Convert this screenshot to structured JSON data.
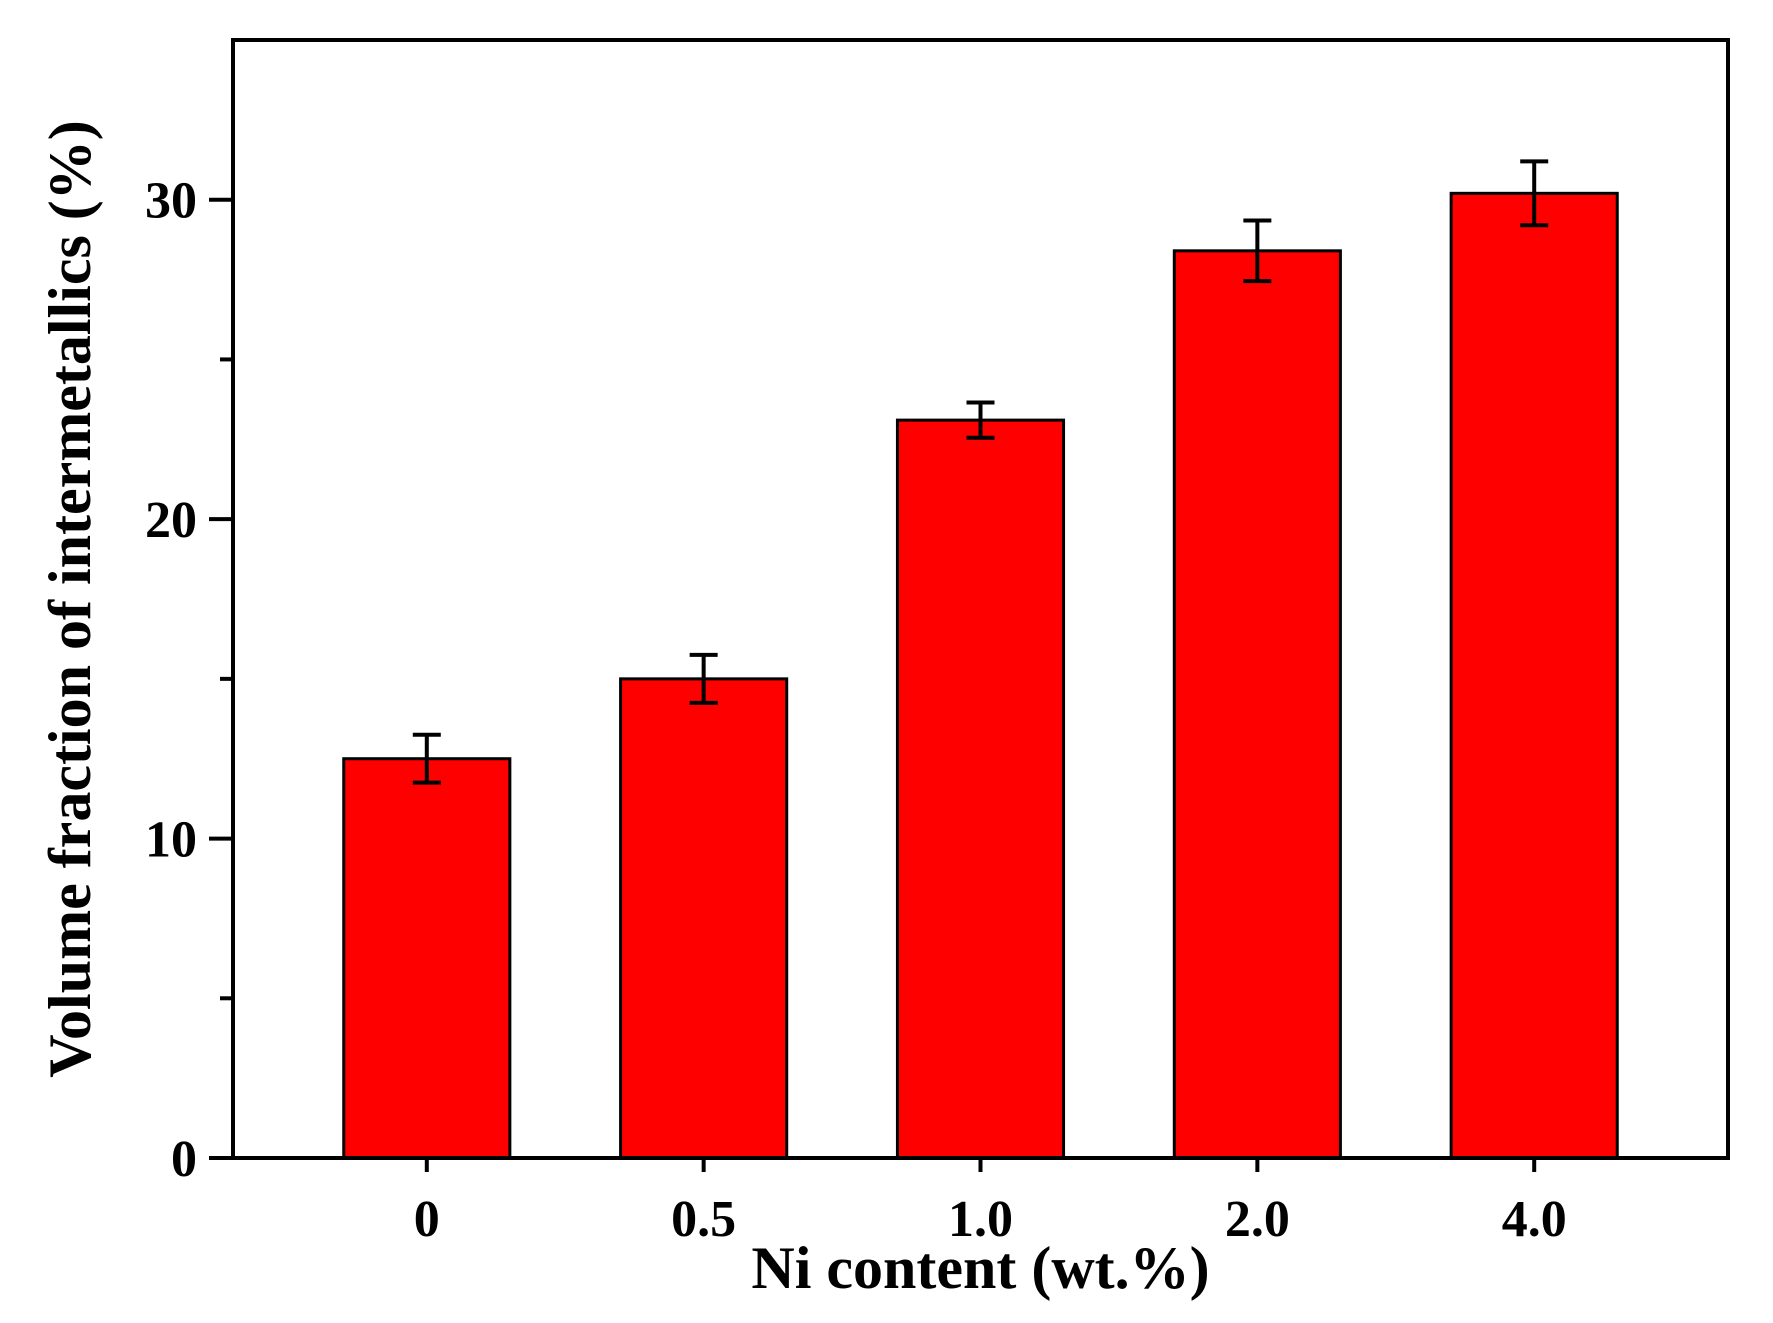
{
  "chart_data": {
    "type": "bar",
    "title": "",
    "xlabel": "Ni content (wt.%)",
    "ylabel": "Volume fraction of intermetallics (%)",
    "categories": [
      "0",
      "0.5",
      "1.0",
      "2.0",
      "4.0"
    ],
    "values": [
      12.5,
      15.0,
      23.1,
      28.4,
      30.2
    ],
    "errors": [
      0.75,
      0.75,
      0.55,
      0.95,
      1.0
    ],
    "ylim": [
      0,
      35
    ],
    "yticks": [
      0,
      10,
      20,
      30
    ],
    "yticks_minor": [
      5,
      15,
      25
    ],
    "grid": false,
    "legend": "none",
    "bar_color": "#ff0000",
    "edge_color": "#000000"
  }
}
